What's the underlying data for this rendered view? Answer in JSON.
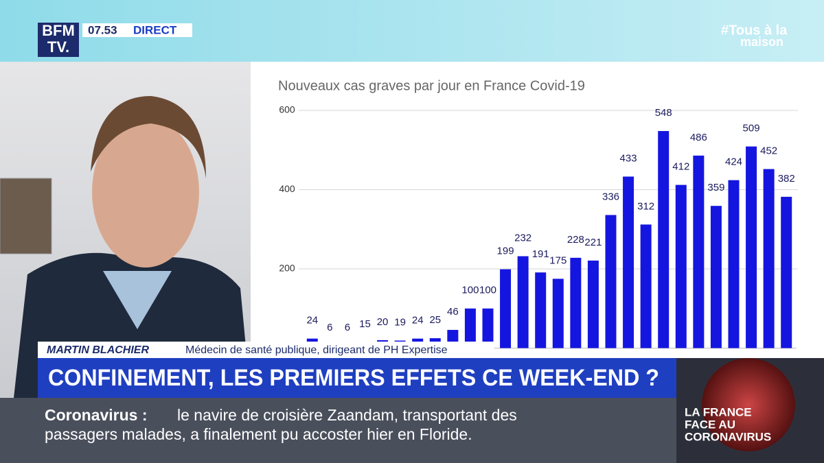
{
  "broadcast": {
    "logo": [
      "BFM",
      "TV."
    ],
    "time": "07.53",
    "live": "DIRECT",
    "hashtag": [
      "#Tous à la",
      "maison"
    ],
    "guest_name": "MARTIN BLACHIER",
    "guest_role": "Médecin de santé publique, dirigeant de PH Expertise",
    "headline": "CONFINEMENT, LES PREMIERS EFFETS CE WEEK-END ?",
    "side_box": [
      "LA FRANCE",
      "FACE AU",
      "CORONAVIRUS"
    ],
    "ticker": {
      "label": "Coronavirus :",
      "lines": [
        "le navire de croisière Zaandam, transportant des",
        "passagers malades, a finalement pu accoster hier en Floride."
      ]
    }
  },
  "chart_data": {
    "type": "bar",
    "title": "Nouveaux cas graves par jour en France Covid-19",
    "categories": [
      null,
      null,
      null,
      null,
      null,
      null,
      null,
      null,
      null,
      null,
      null,
      null,
      null,
      null,
      null,
      null,
      null,
      null,
      null,
      null,
      null,
      null,
      null,
      null,
      null,
      null,
      null,
      null
    ],
    "values": [
      24,
      6,
      6,
      15,
      20,
      19,
      24,
      25,
      46,
      100,
      100,
      199,
      232,
      191,
      175,
      228,
      221,
      336,
      433,
      312,
      548,
      412,
      486,
      359,
      424,
      509,
      452,
      382
    ],
    "color": "#1515e0",
    "ylim": [
      0,
      600
    ],
    "yticks": [
      200,
      400,
      600
    ],
    "grid": true
  }
}
